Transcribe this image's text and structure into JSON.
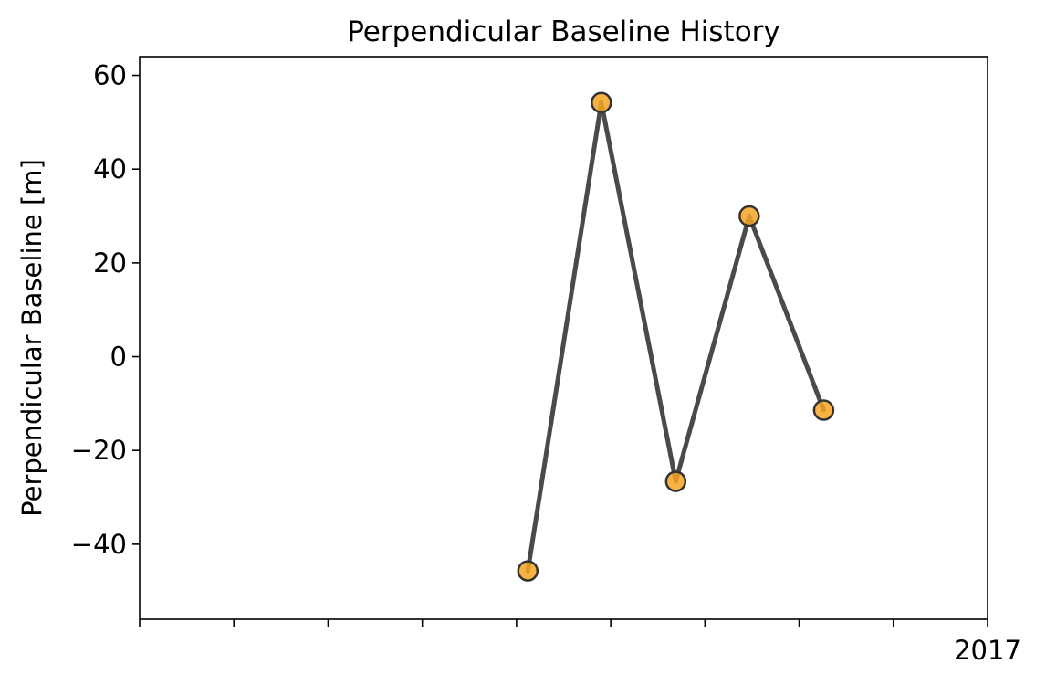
{
  "chart_data": {
    "type": "scatter",
    "title": "Perpendicular Baseline History",
    "xlabel": "",
    "ylabel": "Perpendicular Baseline [m]",
    "ylim": [
      -56,
      64
    ],
    "yticks": [
      -40,
      -20,
      0,
      20,
      40,
      60
    ],
    "xlim": [
      0,
      9
    ],
    "xticks": [
      0,
      1,
      2,
      3,
      4,
      5,
      6,
      7,
      8,
      9
    ],
    "xtick_labels": [
      "",
      "",
      "",
      "",
      "",
      "",
      "",
      "",
      "",
      "2017"
    ],
    "series": [
      {
        "x": [
          4.12,
          4.9,
          5.69,
          6.47,
          7.26
        ],
        "y": [
          -45.7,
          54.2,
          -26.6,
          30.0,
          -11.4
        ],
        "marker_color": "#f5a623",
        "line_color": "#4a4a4a"
      }
    ],
    "grid": false,
    "legend": "none"
  }
}
